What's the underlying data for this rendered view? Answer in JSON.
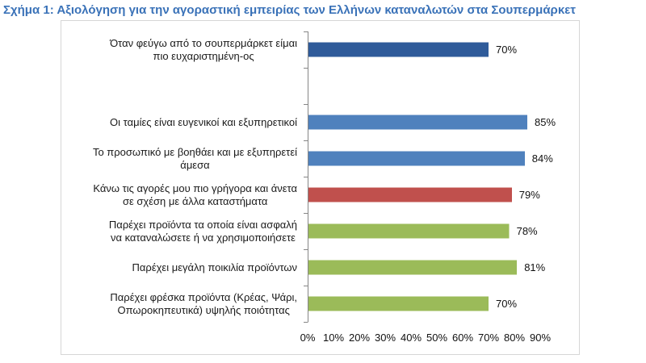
{
  "chart_data": {
    "type": "bar",
    "horizontal": true,
    "title": "Σχήμα 1: Αξιολόγηση για την αγοραστική εμπειρίας των Ελλήνων καταναλωτών στα Σουπερμάρκετ",
    "title_color": "#3A72B8",
    "categories": [
      [
        "Όταν φεύγω από το σουπερμάρκετ είμαι",
        "πιο ευχαριστημένη-ος"
      ],
      [],
      [
        "Οι ταμίες είναι ευγενικοί και εξυπηρετικοί"
      ],
      [
        "Το προσωπικό με βοηθάει και με εξυπηρετεί",
        "άμεσα"
      ],
      [
        "Κάνω τις αγορές μου πιο γρήγορα και άνετα",
        "σε σχέση με άλλα καταστήματα"
      ],
      [
        "Παρέχει προϊόντα τα οποία είναι ασφαλή",
        "να καταναλώσετε ή να χρησιμοποιήσετε"
      ],
      [
        "Παρέχει μεγάλη ποικιλία προϊόντων"
      ],
      [
        "Παρέχει φρέσκα προϊόντα (Κρέας, Ψάρι,",
        "Οπωροκηπευτικά) υψηλής ποιότητας"
      ]
    ],
    "values": [
      70,
      null,
      85,
      84,
      79,
      78,
      81,
      70
    ],
    "value_labels": [
      "70%",
      "",
      "85%",
      "84%",
      "79%",
      "78%",
      "81%",
      "70%"
    ],
    "bar_colors": [
      "#2F5B9A",
      null,
      "#4F81BD",
      "#4F81BD",
      "#C0504D",
      "#9BBB59",
      "#9BBB59",
      "#9BBB59"
    ],
    "xlim": [
      0,
      90
    ],
    "x_ticks": [
      0,
      10,
      20,
      30,
      40,
      50,
      60,
      70,
      80,
      90
    ],
    "x_tick_labels": [
      "0%",
      "10%",
      "20%",
      "30%",
      "40%",
      "50%",
      "60%",
      "70%",
      "80%",
      "90%"
    ],
    "xlabel": "",
    "ylabel": "",
    "grid": false
  }
}
